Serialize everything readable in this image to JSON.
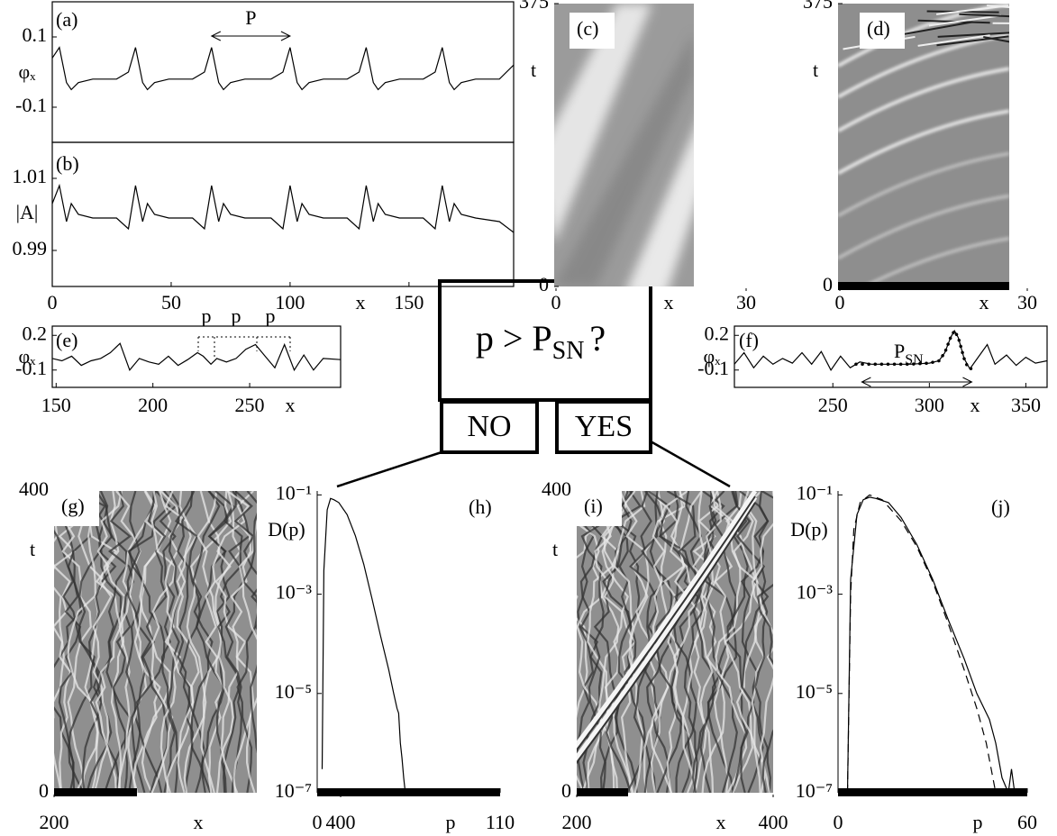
{
  "chart_data": [
    {
      "type": "line",
      "panel_label": "(a)",
      "y_label": "φₓ",
      "xlim": [
        0,
        194
      ],
      "ylim": [
        -0.2,
        0.2
      ],
      "yticks": [
        0.1,
        -0.1
      ],
      "annotations": [
        "P"
      ],
      "series": [
        {
          "color": "#000000",
          "x": [
            0,
            3,
            6,
            8,
            11,
            17,
            27,
            32,
            35,
            38,
            40,
            43,
            49,
            59,
            64,
            67,
            70,
            72,
            75,
            81,
            92,
            97,
            100,
            103,
            105,
            108,
            114,
            124,
            129,
            132,
            135,
            137,
            140,
            146,
            156,
            161,
            164,
            167,
            169,
            172,
            178,
            188,
            194
          ],
          "values": [
            0.04,
            0.07,
            -0.03,
            -0.05,
            -0.03,
            -0.02,
            -0.02,
            0.0,
            0.07,
            -0.03,
            -0.05,
            -0.03,
            -0.02,
            -0.02,
            0.0,
            0.07,
            -0.03,
            -0.05,
            -0.03,
            -0.02,
            -0.02,
            0.0,
            0.07,
            -0.03,
            -0.05,
            -0.03,
            -0.02,
            -0.02,
            0.0,
            0.07,
            -0.03,
            -0.05,
            -0.03,
            -0.02,
            -0.02,
            0.0,
            0.07,
            -0.03,
            -0.05,
            -0.03,
            -0.02,
            -0.02,
            0.02
          ]
        }
      ]
    },
    {
      "type": "line",
      "panel_label": "(b)",
      "y_label": "|A|",
      "x_label": "x",
      "xlim": [
        0,
        194
      ],
      "ylim": [
        0.98,
        1.02
      ],
      "xticks": [
        0,
        50,
        100,
        150
      ],
      "yticks": [
        1.01,
        0.99
      ],
      "series": [
        {
          "color": "#000000",
          "x": [
            0,
            3,
            6,
            8,
            11,
            17,
            27,
            32,
            35,
            38,
            40,
            43,
            49,
            59,
            64,
            67,
            70,
            72,
            75,
            81,
            92,
            97,
            100,
            103,
            105,
            108,
            114,
            124,
            129,
            132,
            135,
            137,
            140,
            146,
            156,
            161,
            164,
            167,
            169,
            172,
            178,
            188,
            194
          ],
          "values": [
            1.003,
            1.008,
            0.998,
            1.003,
            1.0,
            0.999,
            0.999,
            0.996,
            1.008,
            0.998,
            1.003,
            1.0,
            0.999,
            0.999,
            0.996,
            1.008,
            0.998,
            1.003,
            1.0,
            0.999,
            0.999,
            0.996,
            1.008,
            0.998,
            1.003,
            1.0,
            0.999,
            0.999,
            0.996,
            1.008,
            0.998,
            1.003,
            1.0,
            0.999,
            0.999,
            0.996,
            1.008,
            0.998,
            1.003,
            1.0,
            0.999,
            0.998,
            0.995
          ]
        }
      ]
    },
    {
      "type": "image",
      "panel_label": "(c)",
      "y_label": "t",
      "x_label": "x",
      "xlim": [
        0,
        30
      ],
      "ylim": [
        0,
        375
      ],
      "xticks": [
        0,
        30
      ],
      "yticks": [
        0,
        375
      ]
    },
    {
      "type": "image",
      "panel_label": "(d)",
      "y_label": "t",
      "x_label": "x",
      "xlim": [
        0,
        30
      ],
      "ylim": [
        0,
        375
      ],
      "xticks": [
        0,
        30
      ],
      "yticks": [
        0,
        375
      ]
    },
    {
      "type": "line",
      "panel_label": "(e)",
      "y_label": "φₓ",
      "x_label": "x",
      "xlim": [
        148,
        297
      ],
      "ylim": [
        -0.25,
        0.28
      ],
      "xticks": [
        150,
        200,
        250
      ],
      "yticks": [
        0.2,
        -0.1
      ],
      "annotations": [
        "p",
        "p",
        "p"
      ],
      "series": [
        {
          "color": "#000000",
          "x": [
            148,
            153,
            158,
            163,
            168,
            173,
            178,
            183,
            188,
            193,
            198,
            203,
            208,
            213,
            218,
            223,
            226,
            230,
            233,
            238,
            243,
            248,
            253,
            258,
            263,
            268,
            273,
            278,
            283,
            288,
            297
          ],
          "values": [
            0.0,
            -0.02,
            0.02,
            -0.06,
            -0.02,
            0.0,
            0.05,
            0.13,
            -0.1,
            0.0,
            -0.03,
            -0.05,
            0.02,
            -0.06,
            -0.01,
            0.05,
            0.02,
            -0.05,
            0.0,
            -0.03,
            0.0,
            0.08,
            0.12,
            0.02,
            -0.08,
            0.12,
            -0.1,
            0.03,
            -0.1,
            0.0,
            -0.01
          ]
        }
      ]
    },
    {
      "type": "line",
      "panel_label": "(f)",
      "y_label": "φₓ",
      "x_label": "x",
      "xlim": [
        199,
        361
      ],
      "ylim": [
        -0.25,
        0.28
      ],
      "xticks": [
        250,
        300,
        350
      ],
      "yticks": [
        0.2,
        -0.1
      ],
      "annotation": {
        "main": "P",
        "sub": "SN"
      },
      "series": [
        {
          "color": "#000000",
          "x": [
            199,
            204,
            209,
            214,
            219,
            224,
            229,
            234,
            239,
            244,
            249,
            254,
            259,
            264,
            270,
            280,
            290,
            300,
            305,
            308,
            311,
            313,
            315,
            318,
            321,
            324,
            330,
            334,
            340,
            345,
            350,
            355,
            361
          ],
          "values": [
            -0.05,
            0.05,
            -0.08,
            0.02,
            -0.05,
            0.0,
            -0.04,
            0.05,
            -0.05,
            0.06,
            -0.1,
            0.02,
            -0.08,
            -0.03,
            -0.05,
            -0.05,
            -0.05,
            -0.04,
            -0.02,
            0.05,
            0.18,
            0.24,
            0.18,
            0.0,
            -0.09,
            -0.02,
            0.12,
            -0.05,
            0.03,
            -0.06,
            0.01,
            -0.04,
            -0.02
          ]
        },
        {
          "color": "#000000",
          "line_style": "dotted",
          "x": [
            262,
            270,
            280,
            290,
            300,
            305,
            308,
            311,
            313,
            315,
            318,
            320,
            322
          ],
          "values": [
            -0.05,
            -0.05,
            -0.05,
            -0.05,
            -0.04,
            -0.02,
            0.05,
            0.18,
            0.24,
            0.18,
            0.0,
            -0.08,
            -0.09
          ]
        }
      ]
    },
    {
      "type": "image",
      "panel_label": "(g)",
      "y_label": "t",
      "x_label": "x",
      "xlim": [
        200,
        400
      ],
      "ylim": [
        0,
        400
      ],
      "xticks": [
        200,
        400
      ],
      "yticks": [
        0,
        400
      ]
    },
    {
      "type": "line",
      "panel_label": "(h)",
      "y_label": "D(p)",
      "x_label": "p",
      "log_y": true,
      "xlim": [
        0,
        110
      ],
      "ylim": [
        1e-07,
        0.12
      ],
      "xticks": [
        0,
        110
      ],
      "yticks": [
        {
          "value": 0.1,
          "label": "10⁻¹"
        },
        {
          "value": 0.001,
          "label": "10⁻³"
        },
        {
          "value": 1e-05,
          "label": "10⁻⁵"
        },
        {
          "value": 1e-07,
          "label": "10⁻⁷"
        }
      ],
      "series": [
        {
          "color": "#000000",
          "x": [
            3,
            4,
            6,
            8,
            10,
            13,
            18,
            23,
            28,
            33,
            38,
            43,
            46,
            48,
            49,
            50,
            51,
            52,
            53
          ],
          "values": [
            3e-07,
            0.003,
            0.05,
            0.085,
            0.08,
            0.07,
            0.04,
            0.015,
            0.004,
            0.0008,
            0.00015,
            3e-05,
            1e-05,
            5e-06,
            4e-06,
            1e-06,
            5e-07,
            2e-07,
            1e-07
          ]
        }
      ]
    },
    {
      "type": "image",
      "panel_label": "(i)",
      "y_label": "t",
      "x_label": "x",
      "xlim": [
        200,
        400
      ],
      "ylim": [
        0,
        400
      ],
      "xticks": [
        200,
        400
      ],
      "yticks": [
        0,
        400
      ]
    },
    {
      "type": "line",
      "panel_label": "(j)",
      "y_label": "D(p)",
      "x_label": "p",
      "log_y": true,
      "xlim": [
        0,
        60
      ],
      "ylim": [
        1e-07,
        0.12
      ],
      "xticks": [
        0,
        60
      ],
      "yticks": [
        {
          "value": 0.1,
          "label": "10⁻¹"
        },
        {
          "value": 0.001,
          "label": "10⁻³"
        },
        {
          "value": 1e-05,
          "label": "10⁻⁵"
        },
        {
          "value": 1e-07,
          "label": "10⁻⁷"
        }
      ],
      "series": [
        {
          "color": "#000000",
          "x": [
            3,
            4,
            6,
            8,
            10,
            12,
            16,
            20,
            25,
            30,
            35,
            40,
            44,
            48,
            50,
            52,
            54,
            55,
            56
          ],
          "values": [
            1e-07,
            0.002,
            0.04,
            0.08,
            0.09,
            0.085,
            0.07,
            0.035,
            0.01,
            0.002,
            0.0003,
            5e-05,
            1e-05,
            3e-06,
            1e-06,
            2e-07,
            1e-07,
            3e-07,
            1e-07
          ]
        },
        {
          "color": "#000000",
          "line_style": "dashed",
          "x": [
            3,
            4,
            5,
            7,
            10,
            14,
            20,
            25,
            30,
            35,
            40,
            44,
            47,
            50
          ],
          "values": [
            1e-07,
            0.001,
            0.02,
            0.07,
            0.1,
            0.08,
            0.03,
            0.009,
            0.0018,
            0.00025,
            3e-05,
            5e-06,
            1e-06,
            1e-07
          ]
        }
      ]
    }
  ],
  "decision": {
    "question": {
      "main": "p > P",
      "sub": "SN",
      "tail": "?"
    },
    "no": "NO",
    "yes": "YES"
  }
}
